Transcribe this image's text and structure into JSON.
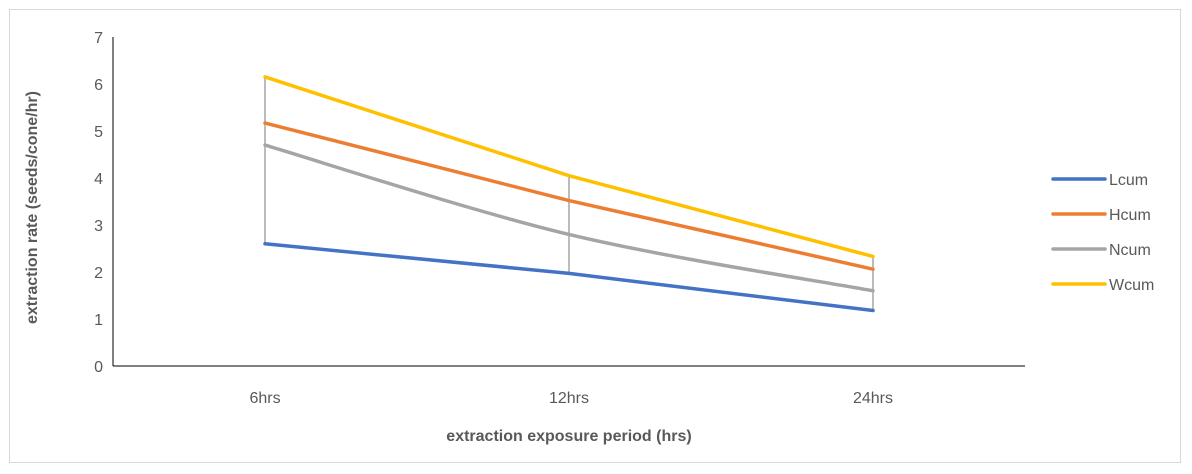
{
  "chart_data": {
    "type": "line",
    "title": "",
    "xlabel": "extraction exposure period (hrs)",
    "ylabel": "extraction rate (seeds/cone/hr)",
    "categories": [
      "6hrs",
      "12hrs",
      "24hrs"
    ],
    "ylim": [
      0,
      7
    ],
    "yticks": [
      "0",
      "1",
      "2",
      "3",
      "4",
      "5",
      "6",
      "7"
    ],
    "grid": false,
    "legend_position": "right",
    "high_low_lines": true,
    "series": [
      {
        "name": "Lcum",
        "color": "#4472C4",
        "values": [
          2.6,
          1.97,
          1.18
        ],
        "smooth": false
      },
      {
        "name": "Hcum",
        "color": "#ED7D31",
        "values": [
          5.17,
          3.52,
          2.06
        ],
        "smooth": false
      },
      {
        "name": "Ncum",
        "color": "#A5A5A5",
        "values": [
          4.7,
          2.8,
          1.6
        ],
        "smooth": true
      },
      {
        "name": "Wcum",
        "color": "#FFC000",
        "values": [
          6.15,
          4.05,
          2.33
        ],
        "smooth": false
      }
    ]
  }
}
